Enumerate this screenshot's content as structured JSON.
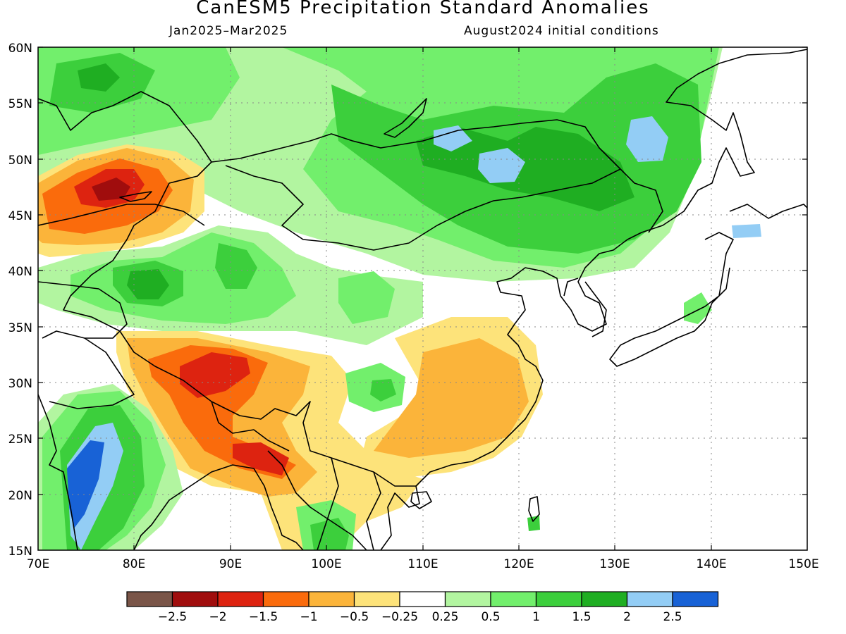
{
  "title": "CanESM5 Precipitation Standard Anomalies",
  "subtitle_left": "Jan2025–Mar2025",
  "subtitle_right": "August2024 initial conditions",
  "map": {
    "lon_range": [
      70,
      150
    ],
    "lat_range": [
      15,
      60
    ],
    "lon_ticks": [
      "70E",
      "80E",
      "90E",
      "100E",
      "110E",
      "120E",
      "130E",
      "140E",
      "150E"
    ],
    "lat_ticks": [
      "60N",
      "55N",
      "50N",
      "45N",
      "40N",
      "35N",
      "30N",
      "25N",
      "20N",
      "15N"
    ]
  },
  "colorbar": {
    "colors": [
      "#7a5548",
      "#a00d0d",
      "#dd2310",
      "#fa6b0c",
      "#fbb43a",
      "#fde37a",
      "#ffffff",
      "#b2f5a0",
      "#72ef6c",
      "#3ccf3c",
      "#1fae22",
      "#93cdf5",
      "#1862d6"
    ],
    "labels": [
      "−2.5",
      "−2",
      "−1.5",
      "−1",
      "−0.5",
      "−0.25",
      "0.25",
      "0.5",
      "1",
      "1.5",
      "2",
      "2.5"
    ]
  }
}
